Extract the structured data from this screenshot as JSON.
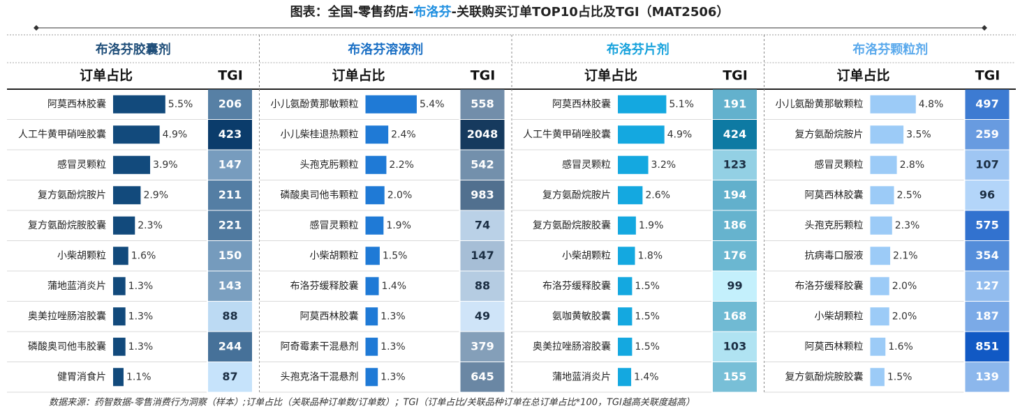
{
  "title": {
    "prefix": "图表：全国-零售药店-",
    "highlight": "布洛芬",
    "suffix": "-关联购买订单TOP10占比及TGI（MAT2506）",
    "highlight_color": "#1f8fe0"
  },
  "source": "数据来源：药智数据-零售消费行为洞察（样本）;订单占比（关联品种订单数/订单数）；TGI（订单占比/关联品种订单在总订单占比*100，TGI越高关联度越高）",
  "chart_data": [
    {
      "type": "bar",
      "orientation": "horizontal",
      "title": "布洛芬胶囊剂",
      "title_color": "#1f4e79",
      "value_header": "订单占比",
      "tgi_header": "TGI",
      "categories": [
        "阿莫西林胶囊",
        "人工牛黄甲硝唑胶囊",
        "感冒灵颗粒",
        "复方氨酚烷胺片",
        "复方氨酚烷胺胶囊",
        "小柴胡颗粒",
        "蒲地蓝消炎片",
        "奥美拉唑肠溶胶囊",
        "磷酸奥司他韦胶囊",
        "健胃消食片"
      ],
      "values": [
        5.5,
        4.9,
        3.9,
        2.9,
        2.3,
        1.6,
        1.3,
        1.3,
        1.3,
        1.1
      ],
      "value_labels": [
        "5.5%",
        "4.9%",
        "3.9%",
        "2.9%",
        "2.3%",
        "1.6%",
        "1.3%",
        "1.3%",
        "1.3%",
        "1.1%"
      ],
      "color": "#124a7c",
      "tgi": [
        206,
        423,
        147,
        211,
        221,
        150,
        143,
        88,
        244,
        87
      ],
      "tgi_light": "#c6e3fb",
      "tgi_dark": "#0b3c6b"
    },
    {
      "type": "bar",
      "orientation": "horizontal",
      "title": "布洛芬溶液剂",
      "title_color": "#1a6fc4",
      "value_header": "订单占比",
      "tgi_header": "TGI",
      "categories": [
        "小儿氨酚黄那敏颗粒",
        "小儿柴桂退热颗粒",
        "头孢克肟颗粒",
        "磷酸奥司他韦颗粒",
        "感冒灵颗粒",
        "小柴胡颗粒",
        "布洛芬缓释胶囊",
        "阿莫西林胶囊",
        "阿奇霉素干混悬剂",
        "头孢克洛干混悬剂"
      ],
      "values": [
        5.4,
        2.4,
        2.2,
        2.0,
        1.9,
        1.5,
        1.4,
        1.3,
        1.3,
        1.3
      ],
      "value_labels": [
        "5.4%",
        "2.4%",
        "2.2%",
        "2.0%",
        "1.9%",
        "1.5%",
        "1.4%",
        "1.3%",
        "1.3%",
        "1.3%"
      ],
      "color": "#1f7ad6",
      "tgi": [
        558,
        2048,
        542,
        983,
        74,
        147,
        88,
        49,
        379,
        645
      ],
      "tgi_light": "#cfe4f8",
      "tgi_dark": "#163a5e"
    },
    {
      "type": "bar",
      "orientation": "horizontal",
      "title": "布洛芬片剂",
      "title_color": "#17a2dc",
      "value_header": "订单占比",
      "tgi_header": "TGI",
      "categories": [
        "阿莫西林胶囊",
        "人工牛黄甲硝唑胶囊",
        "感冒灵颗粒",
        "复方氨酚烷胺片",
        "复方氨酚烷胺胶囊",
        "小柴胡颗粒",
        "布洛芬缓释胶囊",
        "氨咖黄敏胶囊",
        "奥美拉唑肠溶胶囊",
        "蒲地蓝消炎片"
      ],
      "values": [
        5.1,
        4.9,
        3.2,
        2.6,
        1.9,
        1.8,
        1.5,
        1.5,
        1.5,
        1.4
      ],
      "value_labels": [
        "5.1%",
        "4.9%",
        "3.2%",
        "2.6%",
        "1.9%",
        "1.8%",
        "1.5%",
        "1.5%",
        "1.5%",
        "1.4%"
      ],
      "color": "#14a8e0",
      "tgi": [
        191,
        424,
        123,
        194,
        186,
        176,
        99,
        168,
        103,
        155
      ],
      "tgi_light": "#c4f0fc",
      "tgi_dark": "#0e7aa3"
    },
    {
      "type": "bar",
      "orientation": "horizontal",
      "title": "布洛芬颗粒剂",
      "title_color": "#5aa9ec",
      "value_header": "订单占比",
      "tgi_header": "TGI",
      "categories": [
        "小儿氨酚黄那敏颗粒",
        "复方氨酚烷胺片",
        "感冒灵颗粒",
        "阿莫西林胶囊",
        "头孢克肟颗粒",
        "抗病毒口服液",
        "布洛芬缓释胶囊",
        "小柴胡颗粒",
        "阿莫西林颗粒",
        "复方氨酚烷胺胶囊"
      ],
      "values": [
        4.8,
        3.5,
        2.8,
        2.5,
        2.3,
        2.1,
        2.0,
        2.0,
        1.6,
        1.5
      ],
      "value_labels": [
        "4.8%",
        "3.5%",
        "2.8%",
        "2.5%",
        "2.3%",
        "2.1%",
        "2.0%",
        "2.0%",
        "1.6%",
        "1.5%"
      ],
      "color": "#9ccbf7",
      "tgi": [
        497,
        259,
        107,
        96,
        575,
        354,
        127,
        187,
        851,
        139
      ],
      "tgi_light": "#b3d5f9",
      "tgi_dark": "#1159c4"
    }
  ]
}
